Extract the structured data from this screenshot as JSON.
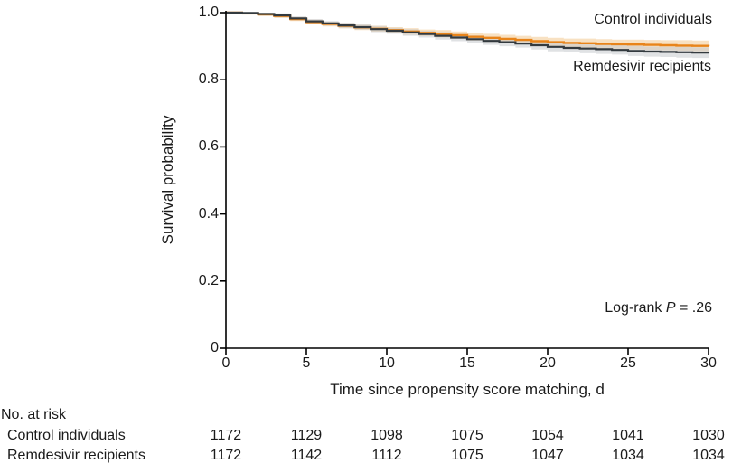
{
  "colors": {
    "control": "#E8841A",
    "remdesivir": "#333A3F",
    "control_band": "#F3C98F",
    "remdesivir_band": "#C6CBCE",
    "axis": "#000000"
  },
  "chart_data": {
    "type": "line",
    "subtype": "kaplan-meier-step",
    "title": "",
    "xlabel": "Time since propensity score matching, d",
    "ylabel": "Survival probability",
    "xlim": [
      0,
      30
    ],
    "ylim": [
      0,
      1.0
    ],
    "x_ticks": [
      0,
      5,
      10,
      15,
      20,
      25,
      30
    ],
    "y_ticks": [
      "1.0",
      "0.8",
      "0.6",
      "0.4",
      "0.2",
      "0"
    ],
    "y_tick_values": [
      1.0,
      0.8,
      0.6,
      0.4,
      0.2,
      0
    ],
    "grid": false,
    "legend_position": "curve-end-labels",
    "x": [
      0,
      1,
      2,
      3,
      4,
      5,
      6,
      7,
      8,
      9,
      10,
      11,
      12,
      13,
      14,
      15,
      16,
      17,
      18,
      19,
      20,
      21,
      22,
      23,
      24,
      25,
      26,
      27,
      28,
      29,
      30
    ],
    "series": [
      {
        "name": "Control individuals",
        "color": "#E8841A",
        "values": [
          1.0,
          0.998,
          0.995,
          0.99,
          0.981,
          0.972,
          0.966,
          0.961,
          0.956,
          0.952,
          0.948,
          0.944,
          0.94,
          0.937,
          0.933,
          0.928,
          0.925,
          0.922,
          0.919,
          0.915,
          0.912,
          0.91,
          0.909,
          0.907,
          0.906,
          0.905,
          0.904,
          0.903,
          0.902,
          0.901,
          0.9
        ],
        "ci_halfwidth": [
          0.003,
          0.004,
          0.005,
          0.006,
          0.006,
          0.007,
          0.007,
          0.008,
          0.008,
          0.009,
          0.009,
          0.01,
          0.01,
          0.011,
          0.011,
          0.011,
          0.012,
          0.012,
          0.012,
          0.013,
          0.013,
          0.013,
          0.014,
          0.014,
          0.014,
          0.015,
          0.015,
          0.015,
          0.016,
          0.016,
          0.016
        ]
      },
      {
        "name": "Remdesivir recipients",
        "color": "#333A3F",
        "values": [
          1.0,
          0.999,
          0.996,
          0.992,
          0.983,
          0.974,
          0.968,
          0.962,
          0.957,
          0.951,
          0.946,
          0.941,
          0.936,
          0.931,
          0.926,
          0.921,
          0.916,
          0.912,
          0.908,
          0.903,
          0.898,
          0.895,
          0.893,
          0.891,
          0.889,
          0.886,
          0.884,
          0.883,
          0.882,
          0.881,
          0.88
        ],
        "ci_halfwidth": [
          0.003,
          0.004,
          0.005,
          0.006,
          0.006,
          0.007,
          0.007,
          0.008,
          0.008,
          0.009,
          0.009,
          0.01,
          0.01,
          0.011,
          0.011,
          0.011,
          0.012,
          0.012,
          0.012,
          0.013,
          0.013,
          0.013,
          0.014,
          0.014,
          0.014,
          0.015,
          0.015,
          0.015,
          0.016,
          0.016,
          0.016
        ]
      }
    ],
    "annotations": {
      "logrank_prefix": "Log-rank ",
      "logrank_p": "P",
      "logrank_value": " = .26"
    }
  },
  "labels": {
    "control_curve": "Control individuals",
    "remdesivir_curve": "Remdesivir recipients"
  },
  "risk_table": {
    "header": "No. at risk",
    "rows": [
      {
        "label": "Control individuals",
        "values": [
          "1172",
          "1129",
          "1098",
          "1075",
          "1054",
          "1041",
          "1030"
        ]
      },
      {
        "label": "Remdesivir recipients",
        "values": [
          "1172",
          "1142",
          "1112",
          "1075",
          "1047",
          "1034",
          "1034"
        ]
      }
    ]
  }
}
